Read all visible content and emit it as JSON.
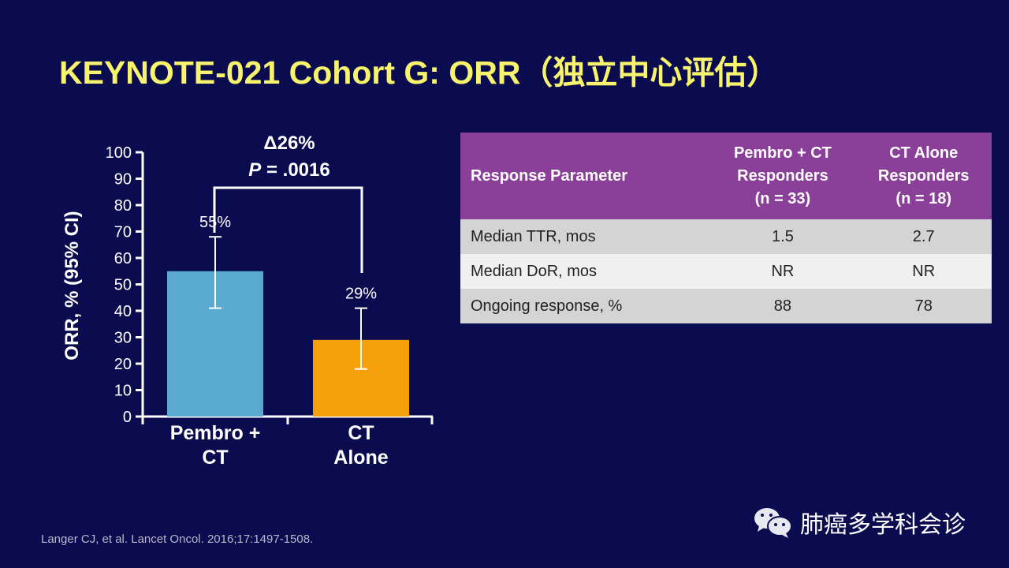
{
  "title": "KEYNOTE-021 Cohort G: ORR（独立中心评估）",
  "chart_data": {
    "type": "bar",
    "categories": [
      "Pembro + CT",
      "CT Alone"
    ],
    "category_lines": [
      [
        "Pembro +",
        "CT"
      ],
      [
        "CT",
        "Alone"
      ]
    ],
    "values": [
      55,
      29
    ],
    "ci_low": [
      41,
      18
    ],
    "ci_high": [
      68,
      41
    ],
    "data_labels": [
      "55%",
      "29%"
    ],
    "colors": [
      "#5aaad0",
      "#f5a00a"
    ],
    "ylabel": "ORR, % (95% CI)",
    "ylim": [
      0,
      100
    ],
    "yticks": [
      0,
      10,
      20,
      30,
      40,
      50,
      60,
      70,
      80,
      90,
      100
    ],
    "annotation": {
      "delta": "Δ26%",
      "p_label": "P",
      "p_value": " = .0016"
    }
  },
  "table": {
    "headers": [
      [
        "Response Parameter"
      ],
      [
        "Pembro + CT",
        "Responders",
        "(n = 33)"
      ],
      [
        "CT Alone",
        "Responders",
        "(n = 18)"
      ]
    ],
    "rows": [
      [
        "Median TTR, mos",
        "1.5",
        "2.7"
      ],
      [
        "Median DoR, mos",
        "NR",
        "NR"
      ],
      [
        "Ongoing response, %",
        "88",
        "78"
      ]
    ],
    "header_color": "#8a3f98"
  },
  "citation": "Langer CJ, et al. Lancet Oncol. 2016;17:1497-1508.",
  "watermark": {
    "icon": "wechat-icon",
    "text": "肺癌多学科会诊"
  }
}
